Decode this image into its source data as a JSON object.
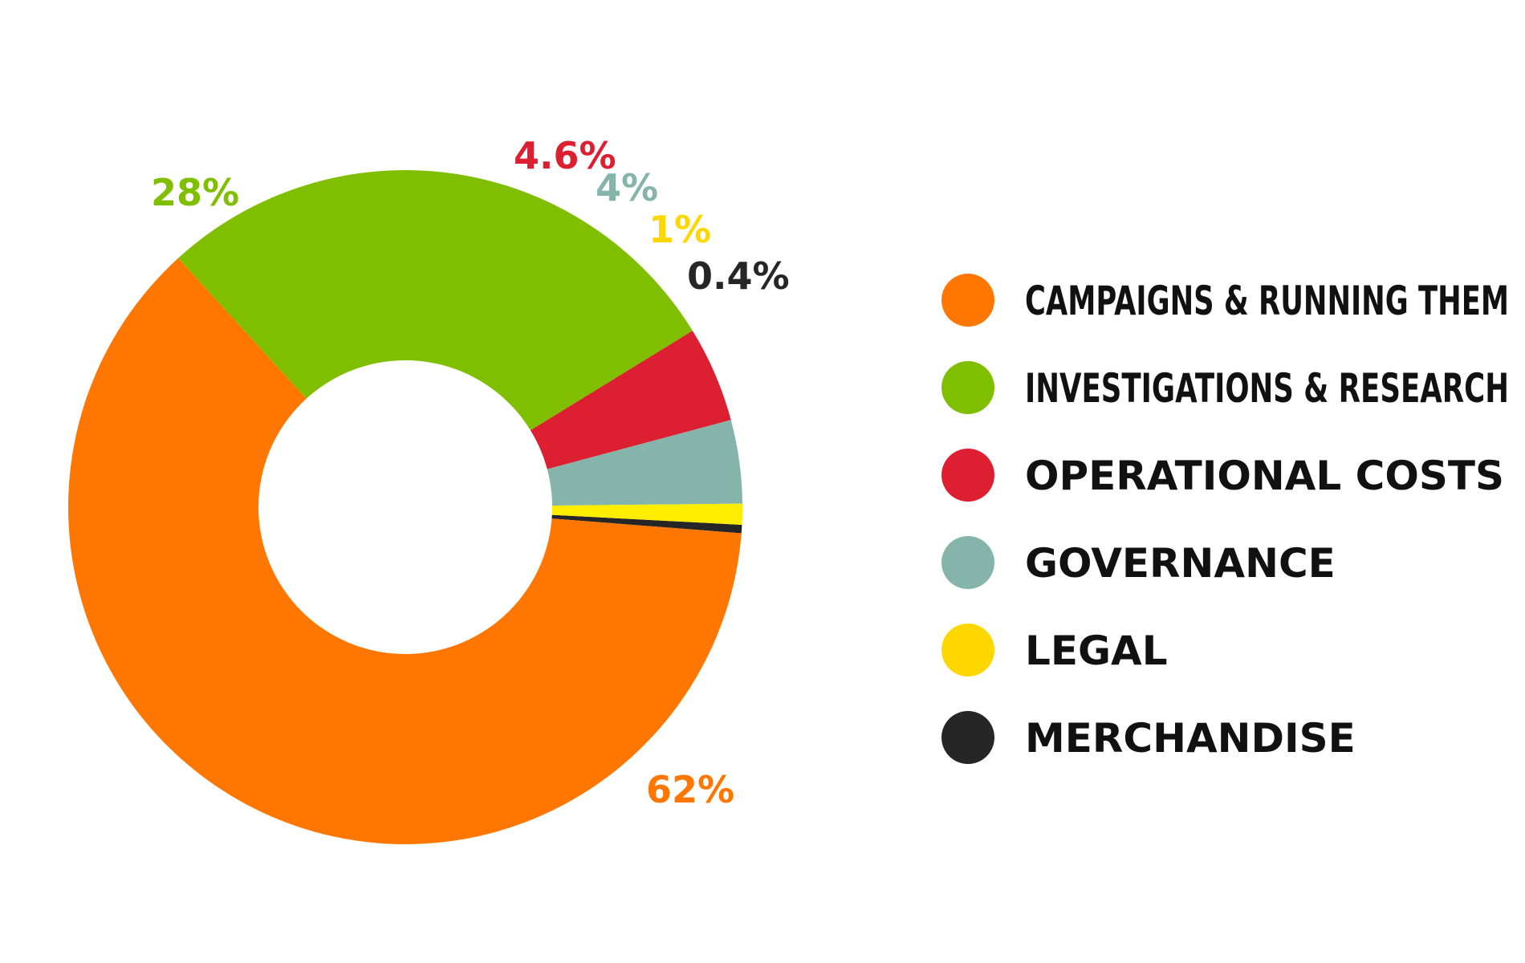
{
  "chart_data": {
    "type": "pie",
    "donut": true,
    "slices": [
      {
        "name": "CAMPAIGNS & RUNNING THEM",
        "value": 62,
        "label": "62%",
        "color": "#FF7700"
      },
      {
        "name": "INVESTIGATIONS & RESEARCH",
        "value": 28,
        "label": "28%",
        "color": "#7FBF00"
      },
      {
        "name": "OPERATIONAL COSTS",
        "value": 4.6,
        "label": "4.6%",
        "color": "#DC1F31"
      },
      {
        "name": "GOVERNANCE",
        "value": 4,
        "label": "4%",
        "color": "#85B5AA"
      },
      {
        "name": "LEGAL",
        "value": 1,
        "label": "1%",
        "color": "#FFED00"
      },
      {
        "name": "MERCHANDISE",
        "value": 0.4,
        "label": "0.4%",
        "color": "#262626"
      }
    ],
    "legend": {
      "placement": "right",
      "items": [
        {
          "label": "CAMPAIGNS & RUNNING THEM",
          "color": "#FF7700"
        },
        {
          "label": "INVESTIGATIONS & RESEARCH",
          "color": "#7FBF00"
        },
        {
          "label": "OPERATIONAL COSTS",
          "color": "#DC1F31"
        },
        {
          "label": "GOVERNANCE",
          "color": "#85B5AA"
        },
        {
          "label": "LEGAL",
          "color": "#FFD700"
        },
        {
          "label": "MERCHANDISE",
          "color": "#262626"
        }
      ]
    }
  }
}
